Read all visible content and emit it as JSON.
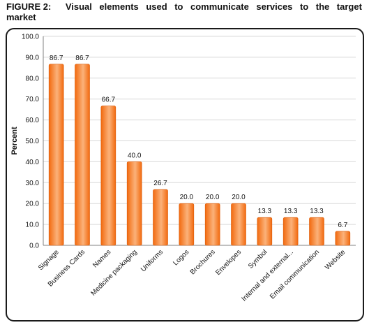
{
  "figure": {
    "label": "FIGURE 2:",
    "title_line1_words": [
      "Visual",
      "elements",
      "used",
      "to",
      "communicate",
      "services",
      "to",
      "the",
      "target"
    ],
    "title_line2": "market"
  },
  "chart_data": {
    "type": "bar",
    "title": "FIGURE 2: Visual elements used to communicate services to the target market",
    "xlabel": "",
    "ylabel": "Percent",
    "ylim": [
      0,
      100
    ],
    "yticks": [
      "0.0",
      "10.0",
      "20.0",
      "30.0",
      "40.0",
      "50.0",
      "60.0",
      "70.0",
      "80.0",
      "90.0",
      "100.0"
    ],
    "grid": true,
    "categories": [
      "Signage",
      "Business Cards",
      "Names",
      "Medicine packaging",
      "Uniforms",
      "Logos",
      "Brochures",
      "Envelopes",
      "Symbol",
      "Internal and external...",
      "Email communication",
      "Website"
    ],
    "values": [
      86.7,
      86.7,
      66.7,
      40.0,
      26.7,
      20.0,
      20.0,
      20.0,
      13.3,
      13.3,
      13.3,
      6.7
    ],
    "value_labels": [
      "86.7",
      "86.7",
      "66.7",
      "40.0",
      "26.7",
      "20.0",
      "20.0",
      "20.0",
      "13.3",
      "13.3",
      "13.3",
      "6.7"
    ],
    "colors": {
      "bar_light": "#fbb27a",
      "bar_dark": "#f26a0f",
      "bar_edge": "#d95a08",
      "grid": "#d9d9d9",
      "axis": "#808080"
    }
  }
}
